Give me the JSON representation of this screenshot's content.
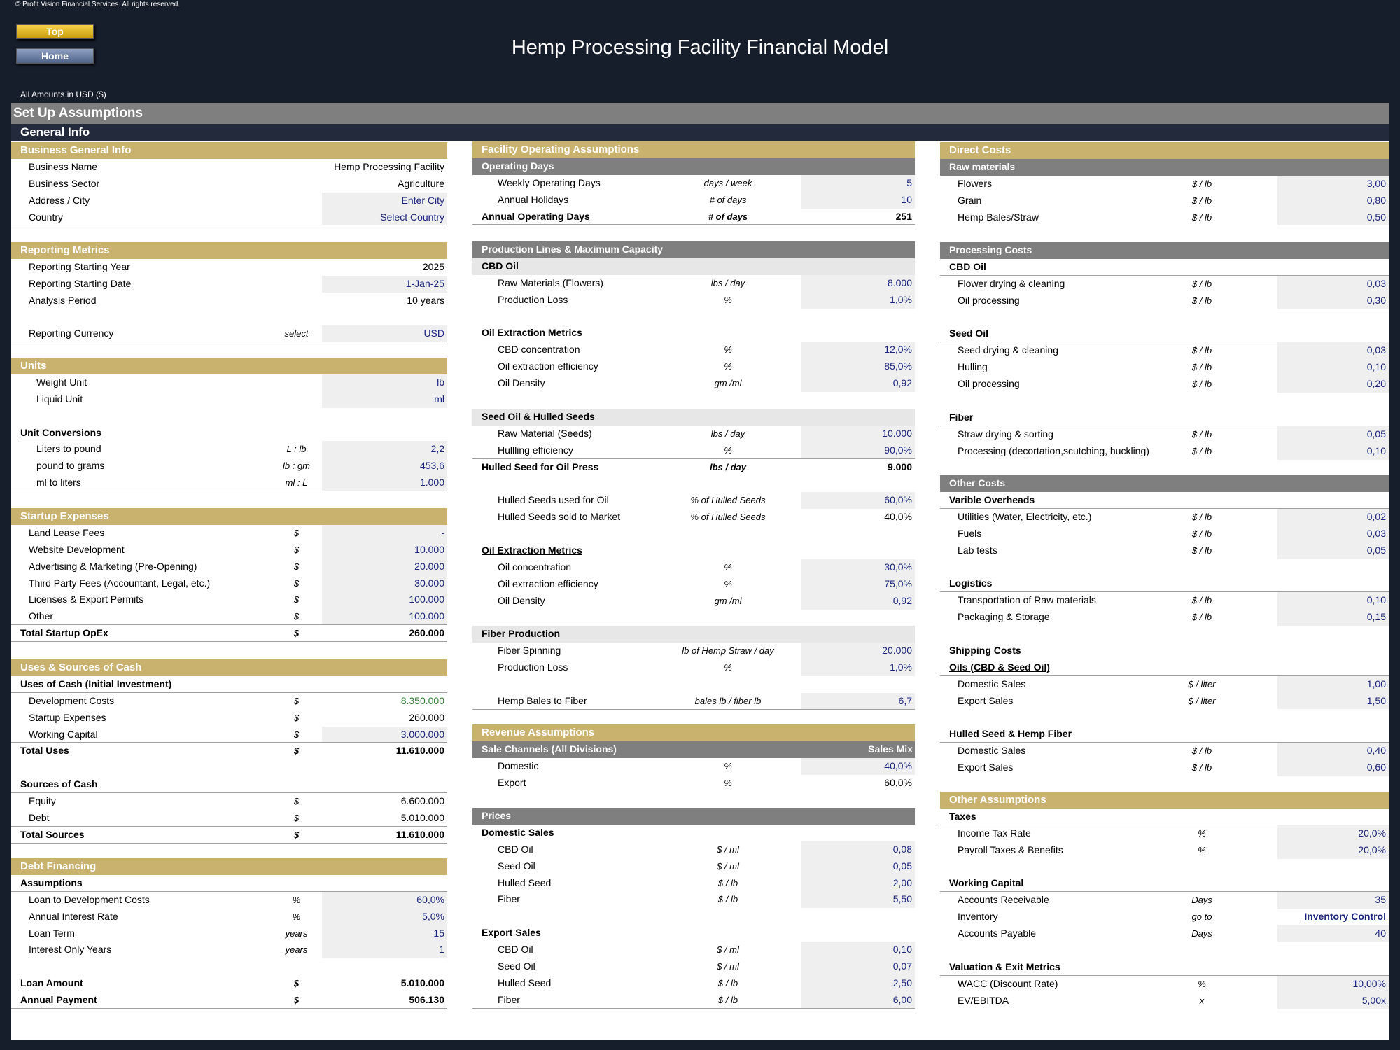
{
  "copyright": "© Profit Vision Financial Services. All rights reserved.",
  "buttons": {
    "top": "Top",
    "home": "Home"
  },
  "title": "Hemp Processing Facility Financial Model",
  "amounts_note": "All Amounts in  USD ($)",
  "setup_title": "Set Up Assumptions",
  "general_title": "General Info",
  "col1": {
    "business": {
      "header": "Business General Info",
      "rows": [
        [
          "Business Name",
          "",
          "Hemp Processing Facility"
        ],
        [
          "Business Sector",
          "",
          "Agriculture"
        ],
        [
          "Address / City",
          "",
          "Enter City"
        ],
        [
          "Country",
          "",
          "Select Country"
        ]
      ]
    },
    "reporting": {
      "header": "Reporting Metrics",
      "rows": [
        [
          "Reporting Starting Year",
          "",
          "2025"
        ],
        [
          "Reporting Starting Date",
          "",
          "1-Jan-25"
        ],
        [
          "Analysis Period",
          "",
          "10 years"
        ],
        [
          "Reporting Currency",
          "select",
          "USD"
        ]
      ]
    },
    "units": {
      "header": "Units",
      "rows": [
        [
          "Weight Unit",
          "",
          "lb"
        ],
        [
          "Liquid Unit",
          "",
          "ml"
        ]
      ],
      "conv_title": "Unit Conversions",
      "conv_rows": [
        [
          "Liters to pound",
          "L : lb",
          "2,2"
        ],
        [
          "pound to grams",
          "lb : gm",
          "453,6"
        ],
        [
          "ml to liters",
          "ml : L",
          "1.000"
        ]
      ]
    },
    "startup": {
      "header": "Startup Expenses",
      "rows": [
        [
          "Land Lease Fees",
          "$",
          "-"
        ],
        [
          "Website Development",
          "$",
          "10.000"
        ],
        [
          "Advertising & Marketing (Pre-Opening)",
          "$",
          "20.000"
        ],
        [
          "Third Party Fees (Accountant, Legal, etc.)",
          "$",
          "30.000"
        ],
        [
          "Licenses & Export Permits",
          "$",
          "100.000"
        ],
        [
          "Other",
          "$",
          "100.000"
        ]
      ],
      "total": [
        "Total Startup OpEx",
        "$",
        "260.000"
      ]
    },
    "uses": {
      "header": "Uses & Sources of Cash",
      "uses_title": "Uses of Cash (Initial Investment)",
      "uses_rows": [
        [
          "Development Costs",
          "$",
          "8.350.000"
        ],
        [
          "Startup Expenses",
          "$",
          "260.000"
        ],
        [
          "Working Capital",
          "$",
          "3.000.000"
        ]
      ],
      "uses_total": [
        "Total Uses",
        "$",
        "11.610.000"
      ],
      "sources_title": "Sources of Cash",
      "sources_rows": [
        [
          "Equity",
          "$",
          "6.600.000"
        ],
        [
          "Debt",
          "$",
          "5.010.000"
        ]
      ],
      "sources_total": [
        "Total Sources",
        "$",
        "11.610.000"
      ]
    },
    "debt": {
      "header": "Debt Financing",
      "assumptions_title": "Assumptions",
      "rows": [
        [
          "Loan to Development Costs",
          "%",
          "60,0%"
        ],
        [
          "Annual Interest Rate",
          "%",
          "5,0%"
        ],
        [
          "Loan Term",
          "years",
          "15"
        ],
        [
          "Interest Only Years",
          "years",
          "1"
        ]
      ],
      "loan_amount": [
        "Loan Amount",
        "$",
        "5.010.000"
      ],
      "annual_payment": [
        "Annual Payment",
        "$",
        "506.130"
      ]
    }
  },
  "col2": {
    "facility": {
      "header": "Facility Operating Assumptions",
      "sub": "Operating Days",
      "rows": [
        [
          "Weekly Operating Days",
          "days / week",
          "5"
        ],
        [
          "Annual Holidays",
          "# of days",
          "10"
        ]
      ],
      "total": [
        "Annual Operating Days",
        "# of days",
        "251"
      ]
    },
    "production": {
      "sub": "Production Lines & Maximum Capacity",
      "cbd_title": "CBD Oil",
      "cbd_rows": [
        [
          "Raw Materials (Flowers)",
          "lbs / day",
          "8.000"
        ],
        [
          "Production Loss",
          "%",
          "1,0%"
        ]
      ],
      "oil_title": "Oil Extraction Metrics",
      "oil_rows": [
        [
          "CBD concentration",
          "%",
          "12,0%"
        ],
        [
          "Oil extraction efficiency",
          "%",
          "85,0%"
        ],
        [
          "Oil Density",
          "gm /ml",
          "0,92"
        ]
      ],
      "seed_title": "Seed Oil & Hulled Seeds",
      "seed_rows": [
        [
          "Raw Material (Seeds)",
          "lbs / day",
          "10.000"
        ],
        [
          "Hullling efficiency",
          "%",
          "90,0%"
        ]
      ],
      "hulled_total": [
        "Hulled Seed for Oil Press",
        "lbs / day",
        "9.000"
      ],
      "hulled_rows": [
        [
          "Hulled Seeds used for Oil",
          "% of Hulled Seeds",
          "60,0%"
        ],
        [
          "Hulled Seeds sold to Market",
          "% of Hulled Seeds",
          "40,0%"
        ]
      ],
      "oil2_title": "Oil Extraction Metrics",
      "oil2_rows": [
        [
          "Oil concentration",
          "%",
          "30,0%"
        ],
        [
          "Oil extraction efficiency",
          "%",
          "75,0%"
        ],
        [
          "Oil Density",
          "gm /ml",
          "0,92"
        ]
      ],
      "fiber_title": "Fiber Production",
      "fiber_rows": [
        [
          "Fiber Spinning",
          "lb of Hemp Straw / day",
          "20.000"
        ],
        [
          "Production Loss",
          "%",
          "1,0%"
        ]
      ],
      "bales_row": [
        "Hemp Bales to Fiber",
        "bales lb / fiber lb",
        "6,7"
      ]
    },
    "revenue": {
      "header": "Revenue Assumptions",
      "sub_left": "Sale Channels (All Divisions)",
      "sub_right": "Sales Mix",
      "rows": [
        [
          "Domestic",
          "%",
          "40,0%"
        ],
        [
          "Export",
          "%",
          "60,0%"
        ]
      ]
    },
    "prices": {
      "sub": "Prices",
      "domestic_title": "Domestic Sales",
      "domestic_rows": [
        [
          "CBD Oil",
          "$ / ml",
          "0,08"
        ],
        [
          "Seed Oil",
          "$ / ml",
          "0,05"
        ],
        [
          "Hulled Seed",
          "$ / lb",
          "2,00"
        ],
        [
          "Fiber",
          "$ / lb",
          "5,50"
        ]
      ],
      "export_title": "Export Sales",
      "export_rows": [
        [
          "CBD Oil",
          "$ / ml",
          "0,10"
        ],
        [
          "Seed Oil",
          "$ / ml",
          "0,07"
        ],
        [
          "Hulled Seed",
          "$ / lb",
          "2,50"
        ],
        [
          "Fiber",
          "$ / lb",
          "6,00"
        ]
      ]
    }
  },
  "col3": {
    "direct": {
      "header": "Direct Costs",
      "sub": "Raw materials",
      "rows": [
        [
          "Flowers",
          "$ / lb",
          "3,00"
        ],
        [
          "Grain",
          "$ / lb",
          "0,80"
        ],
        [
          "Hemp Bales/Straw",
          "$ / lb",
          "0,50"
        ]
      ]
    },
    "processing": {
      "sub": "Processing Costs",
      "cbd_title": "CBD Oil",
      "cbd_rows": [
        [
          "Flower drying & cleaning",
          "$ / lb",
          "0,03"
        ],
        [
          "Oil processing",
          "$ / lb",
          "0,30"
        ]
      ],
      "seed_title": "Seed Oil",
      "seed_rows": [
        [
          "Seed drying & cleaning",
          "$ / lb",
          "0,03"
        ],
        [
          "Hulling",
          "$ / lb",
          "0,10"
        ],
        [
          "Oil processing",
          "$ / lb",
          "0,20"
        ]
      ],
      "fiber_title": "Fiber",
      "fiber_rows": [
        [
          "Straw drying & sorting",
          "$ / lb",
          "0,05"
        ],
        [
          "Processing (decortation,scutching, huckling)",
          "$ / lb",
          "0,10"
        ]
      ]
    },
    "other_costs": {
      "sub": "Other Costs",
      "var_title": "Varible Overheads",
      "var_rows": [
        [
          "Utilities (Water, Electricity, etc.)",
          "$ / lb",
          "0,02"
        ],
        [
          "Fuels",
          "$ / lb",
          "0,03"
        ],
        [
          "Lab tests",
          "$ / lb",
          "0,05"
        ]
      ],
      "log_title": "Logistics",
      "log_rows": [
        [
          "Transportation of Raw materials",
          "$ / lb",
          "0,10"
        ],
        [
          "Packaging & Storage",
          "$ / lb",
          "0,15"
        ]
      ],
      "ship_title": "Shipping Costs",
      "oils_title": "Oils (CBD & Seed Oil)",
      "oils_rows": [
        [
          "Domestic Sales",
          "$ / liter",
          "1,00"
        ],
        [
          "Export Sales",
          "$ / liter",
          "1,50"
        ]
      ],
      "hulled_title": "Hulled Seed & Hemp Fiber",
      "hulled_rows": [
        [
          "Domestic Sales",
          "$ / lb",
          "0,40"
        ],
        [
          "Export Sales",
          "$ / lb",
          "0,60"
        ]
      ]
    },
    "other_assumptions": {
      "header": "Other Assumptions",
      "tax_title": "Taxes",
      "tax_rows": [
        [
          "Income Tax Rate",
          "%",
          "20,0%"
        ],
        [
          "Payroll Taxes & Benefits",
          "%",
          "20,0%"
        ]
      ],
      "wc_title": "Working Capital",
      "wc_ar": [
        "Accounts Receivable",
        "Days",
        "35"
      ],
      "wc_inv": [
        "Inventory",
        "go to",
        "Inventory Control"
      ],
      "wc_ap": [
        "Accounts Payable",
        "Days",
        "40"
      ],
      "val_title": "Valuation & Exit Metrics",
      "val_rows": [
        [
          "WACC (Discount Rate)",
          "%",
          "10,00%"
        ],
        [
          "EV/EBITDA",
          "x",
          "5,00x"
        ]
      ]
    }
  }
}
